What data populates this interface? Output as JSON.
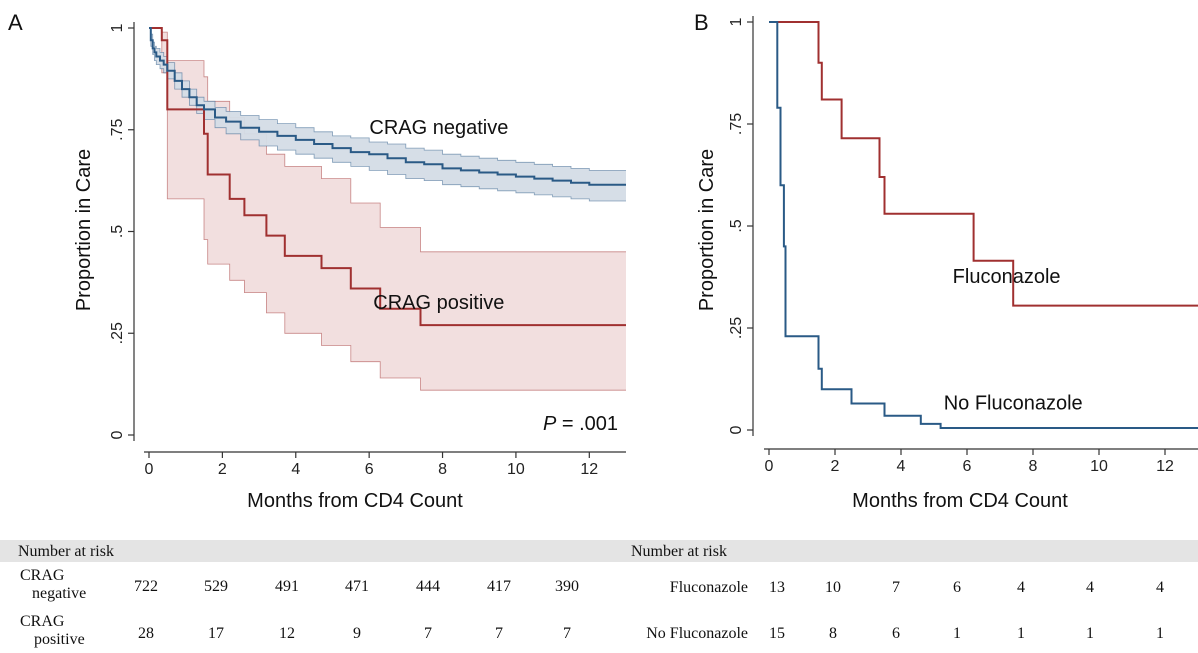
{
  "panels": [
    {
      "letter": "A",
      "ylabel": "Proportion in Care",
      "xlabel": "Months from CD4 Count",
      "pvalue_prefix": "P",
      "pvalue_suffix": " = .001",
      "risk_header": "Number at risk"
    },
    {
      "letter": "B",
      "ylabel": "Proportion in Care",
      "xlabel": "Months from CD4 Count",
      "risk_header": "Number at risk"
    }
  ],
  "risk_tables": [
    {
      "rows": [
        {
          "label_line1": "CRAG",
          "label_line2": "negative",
          "counts": [
            "722",
            "529",
            "491",
            "471",
            "444",
            "417",
            "390"
          ]
        },
        {
          "label_line1": "CRAG",
          "label_line2": "positive",
          "counts": [
            "28",
            "17",
            "12",
            "9",
            "7",
            "7",
            "7"
          ]
        }
      ]
    },
    {
      "rows": [
        {
          "label": "Fluconazole",
          "counts": [
            "13",
            "10",
            "7",
            "6",
            "4",
            "4",
            "4"
          ]
        },
        {
          "label": "No Fluconazole",
          "counts": [
            "15",
            "8",
            "6",
            "1",
            "1",
            "1",
            "1"
          ]
        }
      ]
    }
  ],
  "chart_data": [
    {
      "type": "line",
      "step": true,
      "xlabel": "Months from CD4 Count",
      "ylabel": "Proportion in Care",
      "xlim": [
        0,
        13
      ],
      "ylim": [
        0,
        1
      ],
      "xticks": [
        "0",
        "2",
        "4",
        "6",
        "8",
        "10",
        "12"
      ],
      "yticks": [
        "0",
        ".25",
        ".5",
        ".75",
        "1"
      ],
      "grid": false,
      "colors": {
        "crag_negative": "#2a5a86",
        "crag_negative_band": "#d4dce6",
        "crag_positive": "#a03030",
        "crag_positive_band": "#f1dcdc"
      },
      "series": [
        {
          "name": "CRAG negative",
          "x": [
            0,
            0.05,
            0.1,
            0.15,
            0.2,
            0.3,
            0.4,
            0.5,
            0.7,
            0.9,
            1.1,
            1.3,
            1.5,
            1.8,
            2.1,
            2.5,
            3.0,
            3.5,
            4.0,
            4.5,
            5.0,
            5.5,
            6.0,
            6.5,
            7.0,
            7.5,
            8.0,
            8.5,
            9.0,
            9.5,
            10.0,
            10.5,
            11.0,
            11.5,
            12.0,
            13.0
          ],
          "y": [
            1.0,
            0.97,
            0.95,
            0.94,
            0.93,
            0.92,
            0.91,
            0.895,
            0.87,
            0.85,
            0.83,
            0.81,
            0.8,
            0.78,
            0.77,
            0.755,
            0.745,
            0.735,
            0.725,
            0.715,
            0.705,
            0.695,
            0.69,
            0.68,
            0.67,
            0.665,
            0.655,
            0.65,
            0.645,
            0.64,
            0.635,
            0.63,
            0.625,
            0.62,
            0.615,
            0.615
          ],
          "lower": [
            1.0,
            0.955,
            0.935,
            0.92,
            0.91,
            0.9,
            0.89,
            0.875,
            0.85,
            0.83,
            0.81,
            0.79,
            0.775,
            0.755,
            0.74,
            0.725,
            0.71,
            0.7,
            0.69,
            0.68,
            0.67,
            0.66,
            0.65,
            0.64,
            0.63,
            0.625,
            0.615,
            0.61,
            0.605,
            0.6,
            0.595,
            0.59,
            0.585,
            0.58,
            0.575,
            0.575
          ],
          "upper": [
            1.0,
            0.985,
            0.965,
            0.955,
            0.95,
            0.94,
            0.93,
            0.915,
            0.89,
            0.87,
            0.85,
            0.83,
            0.82,
            0.805,
            0.795,
            0.785,
            0.775,
            0.765,
            0.755,
            0.745,
            0.735,
            0.73,
            0.72,
            0.715,
            0.705,
            0.7,
            0.69,
            0.685,
            0.68,
            0.675,
            0.67,
            0.665,
            0.66,
            0.655,
            0.65,
            0.65
          ]
        },
        {
          "name": "CRAG positive",
          "x": [
            0,
            0.35,
            0.5,
            1.5,
            1.6,
            2.2,
            2.6,
            3.2,
            3.7,
            4.7,
            5.5,
            6.3,
            7.4,
            13.0
          ],
          "y": [
            1.0,
            0.97,
            0.8,
            0.74,
            0.64,
            0.58,
            0.54,
            0.49,
            0.44,
            0.41,
            0.36,
            0.31,
            0.27,
            0.27
          ],
          "lower": [
            1.0,
            0.89,
            0.58,
            0.48,
            0.42,
            0.38,
            0.35,
            0.3,
            0.25,
            0.22,
            0.18,
            0.14,
            0.11,
            0.11
          ],
          "upper": [
            1.0,
            0.99,
            0.92,
            0.88,
            0.82,
            0.78,
            0.74,
            0.69,
            0.66,
            0.63,
            0.57,
            0.51,
            0.45,
            0.45
          ]
        }
      ],
      "annotations": [
        {
          "text": "CRAG negative",
          "x": 7.9,
          "y": 0.74
        },
        {
          "text": "CRAG positive",
          "x": 7.9,
          "y": 0.31
        }
      ]
    },
    {
      "type": "line",
      "step": true,
      "xlabel": "Months from CD4 Count",
      "ylabel": "Proportion in Care",
      "xlim": [
        0,
        13
      ],
      "ylim": [
        0,
        1
      ],
      "xticks": [
        "0",
        "2",
        "4",
        "6",
        "8",
        "10",
        "12"
      ],
      "yticks": [
        "0",
        ".25",
        ".5",
        ".75",
        "1"
      ],
      "grid": false,
      "colors": {
        "fluconazole": "#a03030",
        "no_fluconazole": "#2a5a86"
      },
      "series": [
        {
          "name": "Fluconazole",
          "x": [
            0,
            1.5,
            1.6,
            2.2,
            3.35,
            3.5,
            6.2,
            7.4,
            13.0
          ],
          "y": [
            1.0,
            0.9,
            0.81,
            0.715,
            0.62,
            0.53,
            0.415,
            0.305,
            0.305
          ]
        },
        {
          "name": "No Fluconazole",
          "x": [
            0,
            0.25,
            0.35,
            0.45,
            0.5,
            1.5,
            1.6,
            2.5,
            3.5,
            4.6,
            5.2,
            13.0
          ],
          "y": [
            1.0,
            0.79,
            0.6,
            0.45,
            0.23,
            0.15,
            0.1,
            0.065,
            0.035,
            0.015,
            0.005,
            0.005
          ]
        }
      ],
      "annotations": [
        {
          "text": "Fluconazole",
          "x": 7.2,
          "y": 0.36
        },
        {
          "text": "No Fluconazole",
          "x": 7.4,
          "y": 0.05
        }
      ]
    }
  ]
}
